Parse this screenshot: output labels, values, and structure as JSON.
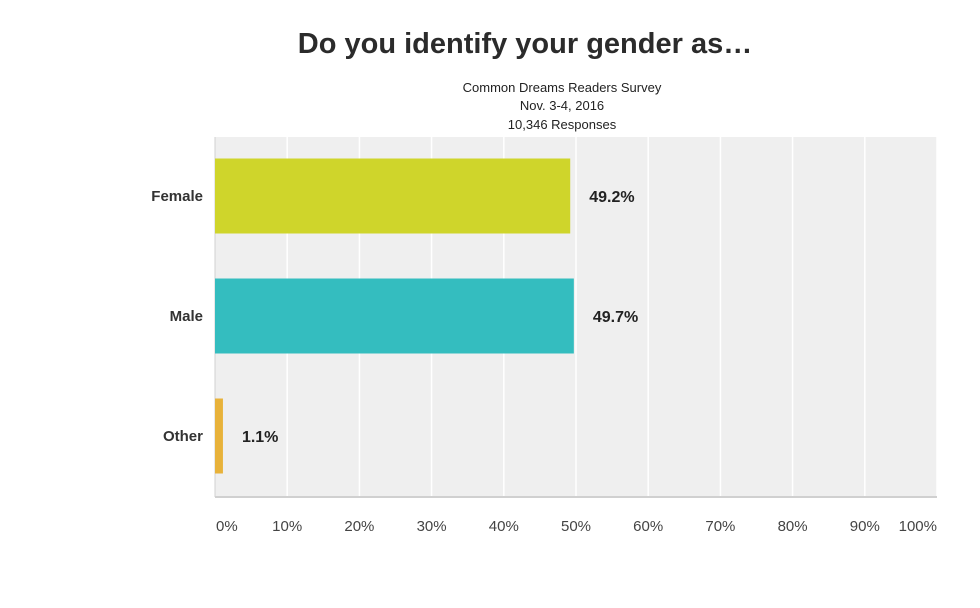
{
  "chart_data": {
    "type": "bar",
    "orientation": "horizontal",
    "title": "Do you identify your gender as…",
    "subtitle": [
      "Common Dreams Readers Survey",
      "Nov. 3-4, 2016",
      "10,346 Responses"
    ],
    "categories": [
      "Female",
      "Male",
      "Other"
    ],
    "values": [
      49.2,
      49.7,
      1.1
    ],
    "data_labels": [
      "49.2%",
      "49.7%",
      "1.1%"
    ],
    "colors": [
      "#cfd52b",
      "#34bdbf",
      "#e8b23a"
    ],
    "xlim": [
      0,
      100
    ],
    "x_ticks": [
      0,
      10,
      20,
      30,
      40,
      50,
      60,
      70,
      80,
      90,
      100
    ],
    "x_tick_labels": [
      "0%",
      "10%",
      "20%",
      "30%",
      "40%",
      "50%",
      "60%",
      "70%",
      "80%",
      "90%",
      "100%"
    ],
    "grid": true,
    "legend": "none",
    "plot_background": "#efefef"
  }
}
